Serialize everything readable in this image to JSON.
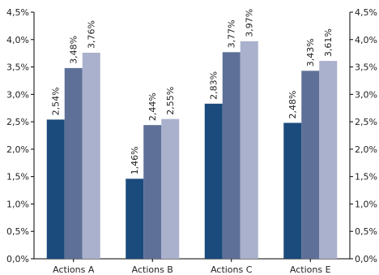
{
  "chart_data": {
    "type": "bar",
    "categories": [
      "Actions A",
      "Actions B",
      "Actions C",
      "Actions E"
    ],
    "series": [
      {
        "values": [
          2.54,
          1.46,
          2.83,
          2.48
        ],
        "color": "#1b4a7c",
        "labels": [
          "2,54%",
          "1,46%",
          "2,83%",
          "2,48%"
        ]
      },
      {
        "values": [
          3.48,
          2.44,
          3.77,
          3.43
        ],
        "color": "#5e7098",
        "labels": [
          "3,48%",
          "2,44%",
          "3,77%",
          "3,43%"
        ]
      },
      {
        "values": [
          3.76,
          2.55,
          3.97,
          3.61
        ],
        "color": "#a9b1cc",
        "labels": [
          "3,76%",
          "2,55%",
          "3,97%",
          "3,61%"
        ]
      }
    ],
    "ylim": [
      0,
      4.5
    ],
    "y_ticks": [
      0,
      0.5,
      1,
      1.5,
      2,
      2.5,
      3,
      3.5,
      4,
      4.5
    ],
    "y_tick_labels": [
      "0,0%",
      "0,5%",
      "1,0%",
      "1,5%",
      "2,0%",
      "2,5%",
      "3,0%",
      "3,5%",
      "4,0%",
      "4,5%"
    ],
    "grid": false,
    "legend": "none",
    "y_axes": "left-and-right"
  }
}
